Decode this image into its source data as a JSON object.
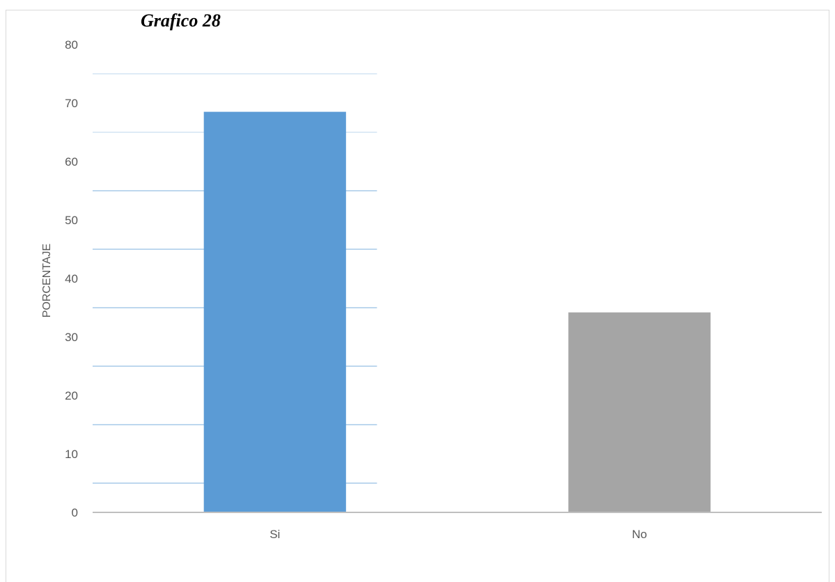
{
  "chart_data": {
    "type": "bar",
    "title": "Grafico 28",
    "categories": [
      "Si",
      "No"
    ],
    "values": [
      68.5,
      34.2
    ],
    "bar_colors": [
      "#5b9bd5",
      "#a5a5a5"
    ],
    "ylabel": "PORCENTAJE",
    "xlabel": "",
    "ylim": [
      0,
      80
    ],
    "yticks": [
      0,
      10,
      20,
      30,
      40,
      50,
      60,
      70,
      80
    ],
    "grid": true,
    "legend": "none"
  }
}
